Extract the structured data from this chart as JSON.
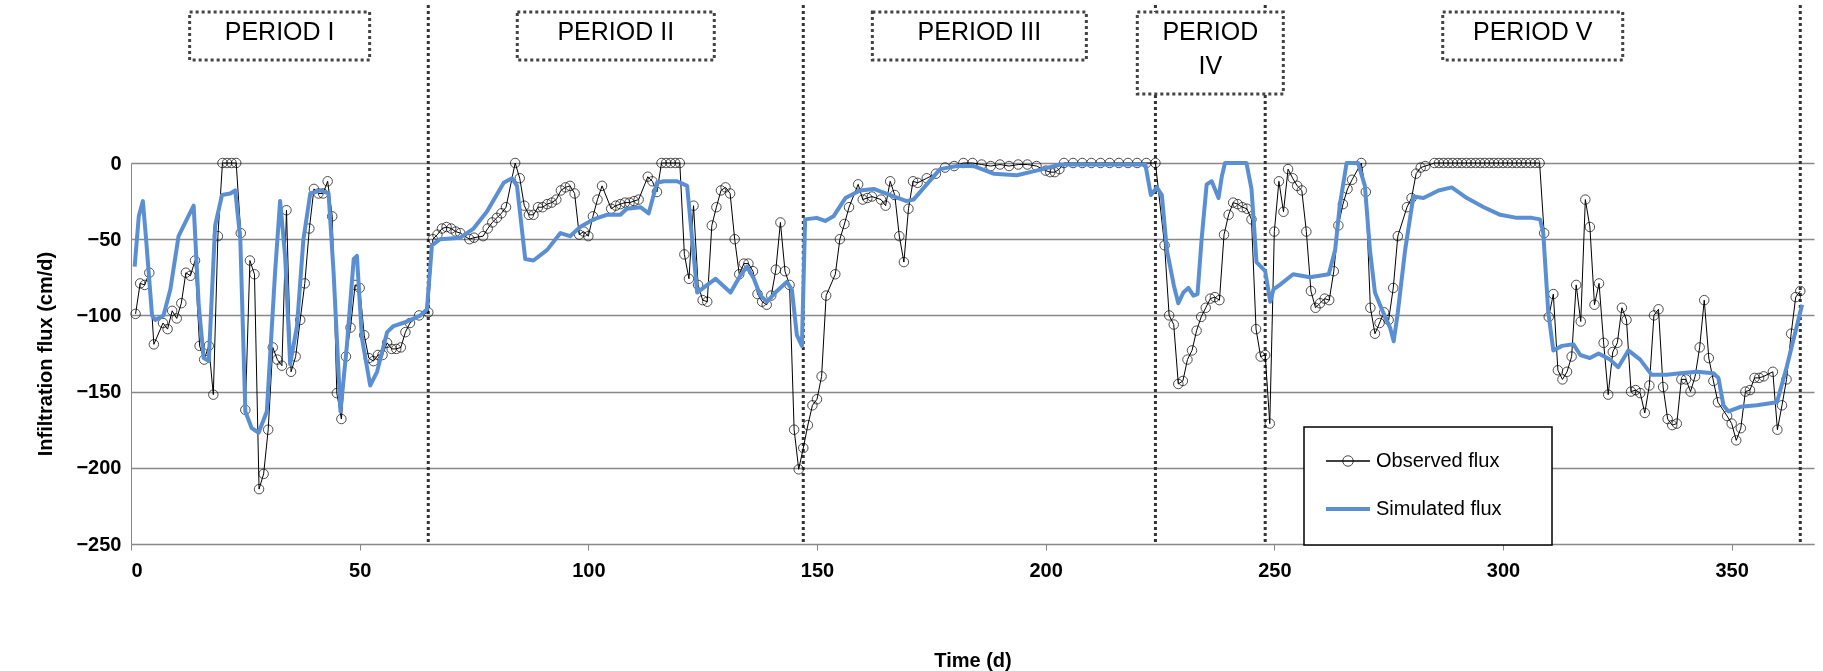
{
  "chart_data": {
    "type": "line",
    "xlabel": "Time (d)",
    "ylabel": "Infiltration flux (cm/d)",
    "xlim": [
      0,
      368
    ],
    "xticks": [
      0,
      50,
      100,
      150,
      200,
      250,
      300,
      350
    ],
    "ylim": [
      -250,
      0
    ],
    "yticks": [
      -250,
      -200,
      -150,
      -100,
      -50,
      0
    ],
    "grid": "y",
    "legend": "bottom right",
    "annotations": [
      "PERIOD I",
      "PERIOD II",
      "PERIOD III",
      "PERIOD IV",
      "PERIOD V"
    ],
    "ref_lines": [
      {
        "axis": "x",
        "value": 65,
        "color": "#333333",
        "line_style": "dotted"
      },
      {
        "axis": "x",
        "value": 147,
        "color": "#333333",
        "line_style": "dotted"
      },
      {
        "axis": "x",
        "value": 224,
        "color": "#333333",
        "line_style": "dotted"
      },
      {
        "axis": "x",
        "value": 248,
        "color": "#333333",
        "line_style": "dotted"
      },
      {
        "axis": "x",
        "value": 365,
        "color": "#333333",
        "line_style": "dotted"
      }
    ],
    "series": [
      {
        "name": "Observed flux",
        "color": "#000000",
        "marker": "circle",
        "line_style": "solid",
        "x": [
          1,
          2,
          3,
          4,
          5,
          7,
          8,
          9,
          10,
          11,
          12,
          13,
          14,
          15,
          16,
          17,
          18,
          19,
          20,
          21,
          22,
          23,
          24,
          25,
          26,
          27,
          28,
          29,
          30,
          31,
          32,
          33,
          34,
          35,
          36,
          37,
          38,
          39,
          40,
          41,
          42,
          43,
          44,
          45,
          46,
          47,
          48,
          49,
          50,
          51,
          52,
          53,
          54,
          55,
          56,
          57,
          58,
          59,
          60,
          61,
          63,
          65,
          66,
          67,
          68,
          69,
          70,
          71,
          72,
          74,
          75,
          77,
          78,
          79,
          80,
          81,
          82,
          84,
          85,
          86,
          87,
          88,
          89,
          90,
          91,
          92,
          93,
          94,
          95,
          96,
          97,
          98,
          99,
          100,
          101,
          102,
          103,
          105,
          106,
          107,
          108,
          109,
          110,
          111,
          113,
          114,
          115,
          116,
          117,
          118,
          119,
          120,
          121,
          122,
          123,
          124,
          125,
          126,
          127,
          128,
          129,
          130,
          131,
          132,
          133,
          134,
          135,
          136,
          137,
          138,
          139,
          140,
          141,
          142,
          143,
          144,
          145,
          146,
          147,
          148,
          149,
          150,
          151,
          152,
          154,
          155,
          156,
          157,
          159,
          160,
          161,
          162,
          164,
          165,
          166,
          167,
          168,
          169,
          170,
          171,
          172,
          174,
          176,
          178,
          180,
          182,
          184,
          186,
          188,
          190,
          192,
          194,
          196,
          198,
          200,
          201,
          202,
          203,
          204,
          206,
          208,
          210,
          212,
          214,
          216,
          218,
          220,
          222,
          224,
          226,
          227,
          228,
          229,
          230,
          231,
          232,
          233,
          234,
          235,
          236,
          237,
          238,
          239,
          240,
          241,
          242,
          243,
          244,
          245,
          246,
          247,
          248,
          249,
          250,
          251,
          252,
          253,
          254,
          255,
          256,
          257,
          258,
          259,
          260,
          261,
          262,
          263,
          264,
          265,
          266,
          267,
          269,
          270,
          271,
          272,
          273,
          274,
          275,
          276,
          277,
          279,
          280,
          281,
          282,
          283,
          285,
          286,
          287,
          288,
          289,
          290,
          291,
          292,
          293,
          294,
          295,
          296,
          297,
          298,
          299,
          300,
          301,
          302,
          303,
          304,
          305,
          306,
          307,
          308,
          309,
          310,
          311,
          312,
          313,
          314,
          315,
          316,
          317,
          318,
          319,
          320,
          321,
          322,
          323,
          324,
          325,
          326,
          327,
          328,
          329,
          330,
          331,
          332,
          333,
          334,
          335,
          336,
          337,
          338,
          339,
          340,
          341,
          342,
          343,
          344,
          345,
          346,
          347,
          349,
          350,
          351,
          352,
          353,
          354,
          355,
          356,
          357,
          359,
          360,
          361,
          362,
          363,
          364,
          365
        ],
        "values": [
          -99,
          -79,
          -80,
          -72,
          -119,
          -105,
          -109,
          -97,
          -102,
          -92,
          -72,
          -74,
          -64,
          -120,
          -129,
          -120,
          -152,
          -48,
          0,
          0,
          0,
          0,
          -46,
          -162,
          -64,
          -73,
          -214,
          -204,
          -175,
          -121,
          -129,
          -133,
          -31,
          -137,
          -127,
          -103,
          -79,
          -43,
          -17,
          -20,
          -20,
          -12,
          -35,
          -151,
          -168,
          -127,
          -108,
          -80,
          -82,
          -113,
          -128,
          -130,
          -126,
          -126,
          -118,
          -122,
          -122,
          -121,
          -111,
          -105,
          -100,
          -98,
          -50,
          -47,
          -43,
          -42,
          -43,
          -45,
          -46,
          -50,
          -49,
          -48,
          -43,
          -39,
          -36,
          -33,
          -29,
          0,
          -10,
          -28,
          -34,
          -34,
          -29,
          -29,
          -27,
          -26,
          -24,
          -18,
          -16,
          -15,
          -20,
          -47,
          -45,
          -48,
          -35,
          -24,
          -15,
          -30,
          -28,
          -27,
          -26,
          -26,
          -25,
          -24,
          -9,
          -12,
          -19,
          0,
          0,
          0,
          0,
          0,
          -60,
          -76,
          -28,
          -80,
          -90,
          -91,
          -41,
          -29,
          -18,
          -16,
          -20,
          -50,
          -73,
          -66,
          -66,
          -71,
          -86,
          -91,
          -93,
          -87,
          -70,
          -39,
          -71,
          -80,
          -175,
          -201,
          -187,
          -172,
          -159,
          -155,
          -140,
          -87,
          -73,
          -50,
          -40,
          -29,
          -14,
          -24,
          -23,
          -22,
          -24,
          -28,
          -12,
          -21,
          -48,
          -65,
          -30,
          -12,
          -13,
          -10,
          -7,
          -3,
          -2,
          0,
          0,
          -1,
          -2,
          -1,
          -2,
          -1,
          -1,
          -2,
          -5,
          -6,
          -6,
          -4,
          0,
          0,
          0,
          0,
          0,
          0,
          0,
          0,
          0,
          0,
          0,
          -54,
          -100,
          -106,
          -145,
          -143,
          -129,
          -123,
          -110,
          -101,
          -95,
          -89,
          -88,
          -90,
          -47,
          -34,
          -26,
          -27,
          -29,
          -30,
          -37,
          -109,
          -127,
          -126,
          -171,
          -45,
          -12,
          -32,
          -4,
          -10,
          -15,
          -18,
          -45,
          -84,
          -95,
          -92,
          -89,
          -90,
          -71,
          -41,
          -27,
          -17,
          -11,
          0,
          -19,
          -95,
          -112,
          -105,
          -98,
          -103,
          -82,
          -48,
          -29,
          -23,
          -7,
          -3,
          -2,
          0,
          0,
          0,
          0,
          0,
          0,
          0,
          0,
          0,
          0,
          0,
          0,
          0,
          0,
          0,
          0,
          0,
          0,
          0,
          0,
          0,
          0,
          0,
          0,
          -46,
          -101,
          -86,
          -136,
          -142,
          -137,
          -127,
          -80,
          -104,
          -24,
          -42,
          -93,
          -79,
          -118,
          -152,
          -124,
          -118,
          -95,
          -103,
          -150,
          -149,
          -151,
          -164,
          -146,
          -100,
          -96,
          -147,
          -168,
          -172,
          -171,
          -142,
          -142,
          -150,
          -140,
          -121,
          -90,
          -128,
          -143,
          -157,
          -166,
          -171,
          -182,
          -174,
          -150,
          -149,
          -141,
          -141,
          -140,
          -137,
          -175,
          -159,
          -142,
          -112,
          -88,
          -84
        ]
      },
      {
        "name": "Simulated flux",
        "color": "#5b8fd4",
        "line_style": "solid",
        "x": [
          0.8,
          1.7,
          2.6,
          3.3,
          4.6,
          5.3,
          7.1,
          8.6,
          10.4,
          12.2,
          13.7,
          14.8,
          15.9,
          17,
          18.4,
          19.9,
          21.7,
          22.8,
          23.9,
          25,
          26.4,
          27.9,
          29.7,
          31.5,
          32.6,
          33.7,
          34.8,
          36.3,
          37.7,
          39.2,
          41.4,
          43.2,
          44.3,
          45.8,
          47.2,
          48.7,
          49.4,
          50.5,
          52.3,
          53.8,
          56,
          57.4,
          60.4,
          63.3,
          64.7,
          65.8,
          67.6,
          72,
          74.9,
          77.8,
          81.5,
          83.3,
          84.4,
          86.2,
          88,
          91,
          93.9,
          96,
          98.2,
          101.1,
          104,
          107,
          108.4,
          111.4,
          113.2,
          115,
          116.5,
          119.4,
          121.6,
          122.7,
          123.8,
          126,
          127.8,
          131.1,
          133.2,
          134.7,
          136.2,
          137.6,
          139.1,
          140.9,
          143.4,
          144.5,
          145.6,
          146.7,
          147.4,
          149.9,
          151.8,
          153.6,
          156.2,
          159.4,
          162.4,
          166,
          169.6,
          171.1,
          174,
          176.9,
          180.6,
          184.3,
          188.6,
          193.7,
          198,
          203.2,
          210.5,
          221.8,
          223,
          224.3,
          225.4,
          226.5,
          228,
          229,
          230.1,
          231.2,
          232.3,
          233.2,
          234.1,
          235.2,
          236.3,
          237.8,
          238.5,
          239.2,
          243.9,
          245,
          246.1,
          248,
          249.1,
          249.8,
          251.2,
          254.1,
          257.8,
          261.9,
          263.3,
          264.3,
          265.8,
          268.3,
          269.8,
          270.9,
          272,
          273.5,
          275.3,
          276.1,
          277,
          278.6,
          280.4,
          282.6,
          285.9,
          288.8,
          292.1,
          295.8,
          299.4,
          303,
          306.3,
          308.1,
          308.8,
          309.9,
          311,
          312.9,
          315.4,
          316.9,
          319,
          320.9,
          323.4,
          325.2,
          327.4,
          330,
          332.5,
          335.8,
          338.7,
          342.4,
          346,
          347.1,
          348.2,
          349.3,
          351.9,
          355.5,
          359.9,
          362.1,
          365.4
        ],
        "values": [
          -68,
          -35,
          -25,
          -50,
          -100,
          -103,
          -100,
          -83,
          -48,
          -37,
          -28,
          -93,
          -128,
          -130,
          -41,
          -21,
          -20,
          -18,
          -50,
          -163,
          -174,
          -177,
          -163,
          -72,
          -25,
          -61,
          -132,
          -107,
          -50,
          -20,
          -18,
          -20,
          -72,
          -163,
          -120,
          -63,
          -61,
          -115,
          -146,
          -137,
          -111,
          -107,
          -104,
          -100,
          -96,
          -54,
          -50,
          -49,
          -43,
          -32,
          -13,
          -10,
          -15,
          -63,
          -64,
          -57,
          -46,
          -48,
          -42,
          -37,
          -34,
          -34,
          -30,
          -29,
          -33,
          -13,
          -12,
          -12,
          -15,
          -50,
          -85,
          -80,
          -76,
          -85,
          -74,
          -68,
          -76,
          -87,
          -91,
          -85,
          -78,
          -83,
          -113,
          -120,
          -37,
          -36,
          -38,
          -35,
          -23,
          -18,
          -17,
          -21,
          -25,
          -24,
          -14,
          -4,
          -2,
          -2,
          -7,
          -8,
          -5,
          -1,
          -1,
          -1,
          -21,
          -16,
          -21,
          -57,
          -80,
          -92,
          -85,
          -82,
          -87,
          -86,
          -50,
          -14,
          -12,
          -23,
          -9,
          0,
          0,
          -17,
          -65,
          -71,
          -91,
          -83,
          -80,
          -73,
          -75,
          -73,
          -57,
          -28,
          0,
          0,
          -15,
          -57,
          -85,
          -96,
          -108,
          -117,
          -98,
          -57,
          -22,
          -23,
          -18,
          -16,
          -23,
          -29,
          -34,
          -36,
          -36,
          -37,
          -46,
          -98,
          -123,
          -120,
          -119,
          -126,
          -128,
          -125,
          -129,
          -134,
          -123,
          -129,
          -139,
          -139,
          -138,
          -137,
          -138,
          -141,
          -159,
          -163,
          -160,
          -159,
          -157,
          -133,
          -93
        ]
      }
    ]
  }
}
